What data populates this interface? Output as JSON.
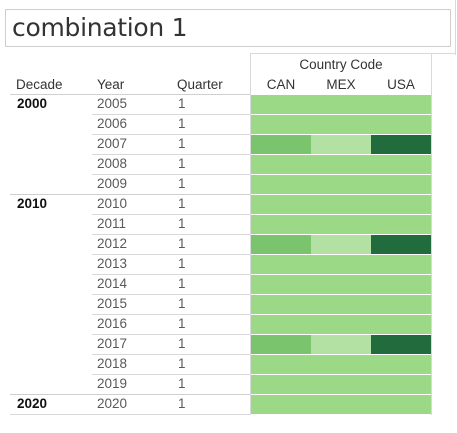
{
  "title": "combination 1",
  "headers": {
    "decade": "Decade",
    "year": "Year",
    "quarter": "Quarter",
    "country_group": "Country Code"
  },
  "colors": {
    "base": "#9cd987",
    "medium": "#79c46c",
    "light": "#b3e1a3",
    "dark": "#216b3c"
  },
  "chart_data": {
    "type": "heatmap",
    "title": "combination 1",
    "column_group_label": "Country Code",
    "columns": [
      "CAN",
      "MEX",
      "USA"
    ],
    "row_dimensions": [
      "Decade",
      "Year",
      "Quarter"
    ],
    "rows": [
      {
        "decade": "2000",
        "year": "2005",
        "quarter": "1",
        "shades": [
          "base",
          "base",
          "base"
        ]
      },
      {
        "decade": "",
        "year": "2006",
        "quarter": "1",
        "shades": [
          "base",
          "base",
          "base"
        ]
      },
      {
        "decade": "",
        "year": "2007",
        "quarter": "1",
        "shades": [
          "medium",
          "light",
          "dark"
        ]
      },
      {
        "decade": "",
        "year": "2008",
        "quarter": "1",
        "shades": [
          "base",
          "base",
          "base"
        ]
      },
      {
        "decade": "",
        "year": "2009",
        "quarter": "1",
        "shades": [
          "base",
          "base",
          "base"
        ]
      },
      {
        "decade": "2010",
        "year": "2010",
        "quarter": "1",
        "shades": [
          "base",
          "base",
          "base"
        ]
      },
      {
        "decade": "",
        "year": "2011",
        "quarter": "1",
        "shades": [
          "base",
          "base",
          "base"
        ]
      },
      {
        "decade": "",
        "year": "2012",
        "quarter": "1",
        "shades": [
          "medium",
          "light",
          "dark"
        ]
      },
      {
        "decade": "",
        "year": "2013",
        "quarter": "1",
        "shades": [
          "base",
          "base",
          "base"
        ]
      },
      {
        "decade": "",
        "year": "2014",
        "quarter": "1",
        "shades": [
          "base",
          "base",
          "base"
        ]
      },
      {
        "decade": "",
        "year": "2015",
        "quarter": "1",
        "shades": [
          "base",
          "base",
          "base"
        ]
      },
      {
        "decade": "",
        "year": "2016",
        "quarter": "1",
        "shades": [
          "base",
          "base",
          "base"
        ]
      },
      {
        "decade": "",
        "year": "2017",
        "quarter": "1",
        "shades": [
          "medium",
          "light",
          "dark"
        ]
      },
      {
        "decade": "",
        "year": "2018",
        "quarter": "1",
        "shades": [
          "base",
          "base",
          "base"
        ]
      },
      {
        "decade": "",
        "year": "2019",
        "quarter": "1",
        "shades": [
          "base",
          "base",
          "base"
        ]
      },
      {
        "decade": "2020",
        "year": "2020",
        "quarter": "1",
        "shades": [
          "base",
          "base",
          "base"
        ]
      }
    ]
  }
}
